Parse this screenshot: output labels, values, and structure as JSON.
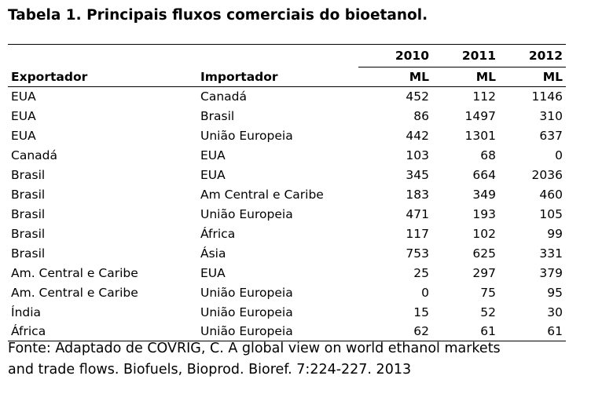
{
  "title": "Tabela 1. Principais fluxos comerciais do bioetanol.",
  "table": {
    "years": [
      "2010",
      "2011",
      "2012"
    ],
    "col_exporter": "Exportador",
    "col_importer": "Importador",
    "unit": "ML",
    "rows": [
      {
        "exporter": "EUA",
        "importer": "Canadá",
        "v2010": "452",
        "v2011": "112",
        "v2012": "1146"
      },
      {
        "exporter": "EUA",
        "importer": "Brasil",
        "v2010": "86",
        "v2011": "1497",
        "v2012": "310"
      },
      {
        "exporter": "EUA",
        "importer": "União Europeia",
        "v2010": "442",
        "v2011": "1301",
        "v2012": "637"
      },
      {
        "exporter": "Canadá",
        "importer": "EUA",
        "v2010": "103",
        "v2011": "68",
        "v2012": "0"
      },
      {
        "exporter": "Brasil",
        "importer": "EUA",
        "v2010": "345",
        "v2011": "664",
        "v2012": "2036"
      },
      {
        "exporter": "Brasil",
        "importer": "Am Central e Caribe",
        "v2010": "183",
        "v2011": "349",
        "v2012": "460"
      },
      {
        "exporter": "Brasil",
        "importer": "União Europeia",
        "v2010": "471",
        "v2011": "193",
        "v2012": "105"
      },
      {
        "exporter": "Brasil",
        "importer": "África",
        "v2010": "117",
        "v2011": "102",
        "v2012": "99"
      },
      {
        "exporter": "Brasil",
        "importer": "Ásia",
        "v2010": "753",
        "v2011": "625",
        "v2012": "331"
      },
      {
        "exporter": "Am. Central e Caribe",
        "importer": "EUA",
        "v2010": "25",
        "v2011": "297",
        "v2012": "379"
      },
      {
        "exporter": "Am. Central e Caribe",
        "importer": "União Europeia",
        "v2010": "0",
        "v2011": "75",
        "v2012": "95"
      },
      {
        "exporter": "Índia",
        "importer": "União Europeia",
        "v2010": "15",
        "v2011": "52",
        "v2012": "30"
      },
      {
        "exporter": "África",
        "importer": "União Europeia",
        "v2010": "62",
        "v2011": "61",
        "v2012": "61"
      }
    ]
  },
  "source": {
    "line1": "Fonte: Adaptado de COVRIG, C. A global view on world ethanol markets",
    "line2": "and trade flows. Biofuels, Bioprod. Bioref. 7:224-227. 2013"
  }
}
